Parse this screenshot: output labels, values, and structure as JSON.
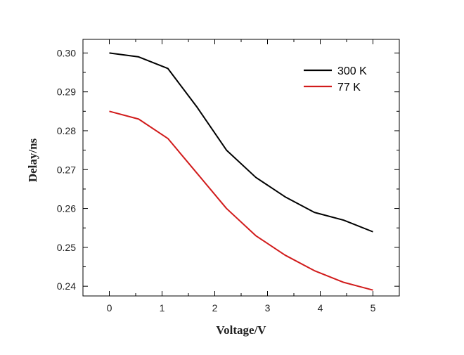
{
  "chart_data": {
    "type": "line",
    "title": "",
    "xlabel": "Voltage/V",
    "ylabel": "Delay/ns",
    "xlim": [
      -0.5,
      5.5
    ],
    "ylim": [
      0.2375,
      0.3035
    ],
    "xticks": [
      0,
      1,
      2,
      3,
      4,
      5
    ],
    "xtick_labels": [
      "0",
      "1",
      "2",
      "3",
      "4",
      "5"
    ],
    "yticks": [
      0.24,
      0.25,
      0.26,
      0.27,
      0.28,
      0.29,
      0.3
    ],
    "ytick_labels": [
      "0.24",
      "0.25",
      "0.26",
      "0.27",
      "0.28",
      "0.29",
      "0.30"
    ],
    "grid": false,
    "legend_position": "top-right",
    "series": [
      {
        "name": "300 K",
        "color": "#000000",
        "x": [
          0,
          0.556,
          1.111,
          1.667,
          2.222,
          2.778,
          3.333,
          3.889,
          4.444,
          5
        ],
        "values": [
          0.3,
          0.299,
          0.296,
          0.286,
          0.275,
          0.268,
          0.263,
          0.259,
          0.257,
          0.254
        ]
      },
      {
        "name": "77 K",
        "color": "#d11b1b",
        "x": [
          0,
          0.556,
          1.111,
          1.667,
          2.222,
          2.778,
          3.333,
          3.889,
          4.444,
          5
        ],
        "values": [
          0.285,
          0.283,
          0.278,
          0.269,
          0.26,
          0.253,
          0.248,
          0.244,
          0.241,
          0.239
        ]
      }
    ]
  }
}
